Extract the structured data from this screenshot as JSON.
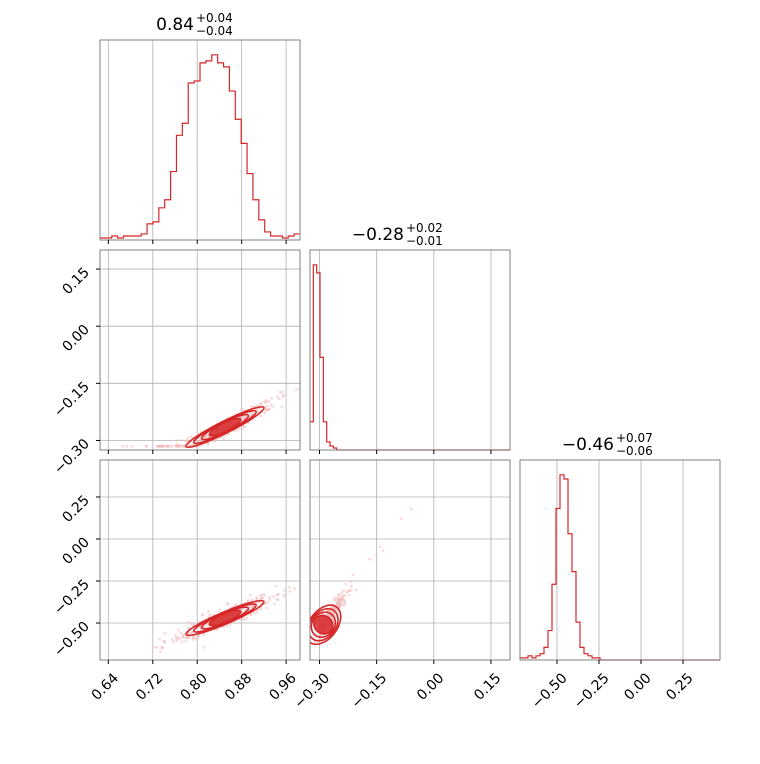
{
  "chart_data": {
    "type": "corner",
    "colors": {
      "series": "#d62728",
      "scatter": "#f2b8b8",
      "grid": "#b0b0b0",
      "frame": "#808080",
      "text": "#000000"
    },
    "grid": true,
    "params": [
      {
        "median": "0.84",
        "upper": "+0.04",
        "lower": "−0.04",
        "range": [
          0.625,
          0.985
        ],
        "ticks": [
          0.64,
          0.72,
          0.8,
          0.88,
          0.96
        ],
        "tick_labels": [
          "0.64",
          "0.72",
          "0.80",
          "0.88",
          "0.96"
        ]
      },
      {
        "median": "−0.28",
        "upper": "+0.02",
        "lower": "−0.01",
        "range": [
          -0.325,
          0.2
        ],
        "ticks": [
          -0.3,
          -0.15,
          0.0,
          0.15
        ],
        "tick_labels": [
          "−0.30",
          "−0.15",
          "0.00",
          "0.15"
        ]
      },
      {
        "median": "−0.46",
        "upper": "+0.07",
        "lower": "−0.06",
        "range": [
          -0.72,
          0.47
        ],
        "ticks": [
          -0.5,
          -0.25,
          0.0,
          0.25
        ],
        "tick_labels": [
          "−0.50",
          "−0.25",
          "0.00",
          "0.25"
        ]
      }
    ],
    "histograms": [
      {
        "param": 0,
        "bin_edges_range": [
          0.625,
          0.985
        ],
        "counts": [
          1,
          1,
          2,
          1,
          2,
          2,
          2,
          3,
          8,
          9,
          16,
          20,
          34,
          52,
          58,
          78,
          79,
          88,
          89,
          92,
          88,
          86,
          74,
          60,
          48,
          33,
          20,
          10,
          4,
          2,
          2,
          1,
          2,
          3
        ]
      },
      {
        "param": 1,
        "bin_edges_range": [
          -0.325,
          0.2
        ],
        "counts": [
          14,
          92,
          88,
          46,
          14,
          4,
          2,
          1,
          0,
          0,
          0,
          0,
          0,
          0,
          0,
          0,
          0,
          0,
          0,
          0,
          0,
          0,
          0,
          0,
          0,
          0,
          0,
          0,
          0,
          0,
          0,
          0,
          0,
          0,
          0,
          0,
          0,
          0,
          0,
          0,
          0,
          0,
          0,
          0,
          0,
          0,
          0,
          0,
          0,
          0,
          0,
          0,
          0,
          0,
          0,
          0,
          0,
          0,
          0,
          0
        ]
      },
      {
        "param": 2,
        "bin_edges_range": [
          -0.72,
          0.47
        ],
        "counts": [
          1,
          1,
          2,
          1,
          2,
          3,
          6,
          14,
          36,
          72,
          88,
          86,
          60,
          42,
          18,
          6,
          3,
          2,
          1,
          1,
          0,
          0,
          0,
          0,
          0,
          0,
          0,
          0,
          0,
          0,
          0,
          0,
          0,
          0,
          0,
          0,
          0,
          0,
          0,
          0,
          0,
          0,
          0,
          0,
          0,
          0,
          0,
          0,
          0,
          0
        ]
      }
    ],
    "joint": [
      {
        "x_param": 0,
        "y_param": 1,
        "relation": "y = -0.305 + 0.4*(x-0.80)^1.3"
      },
      {
        "x_param": 0,
        "y_param": 2,
        "relation": "y = -0.54 + 1.4*(x-0.80)"
      },
      {
        "x_param": 1,
        "y_param": 2,
        "relation": "y = -0.54 + 3.0*(x+0.30)"
      }
    ]
  }
}
